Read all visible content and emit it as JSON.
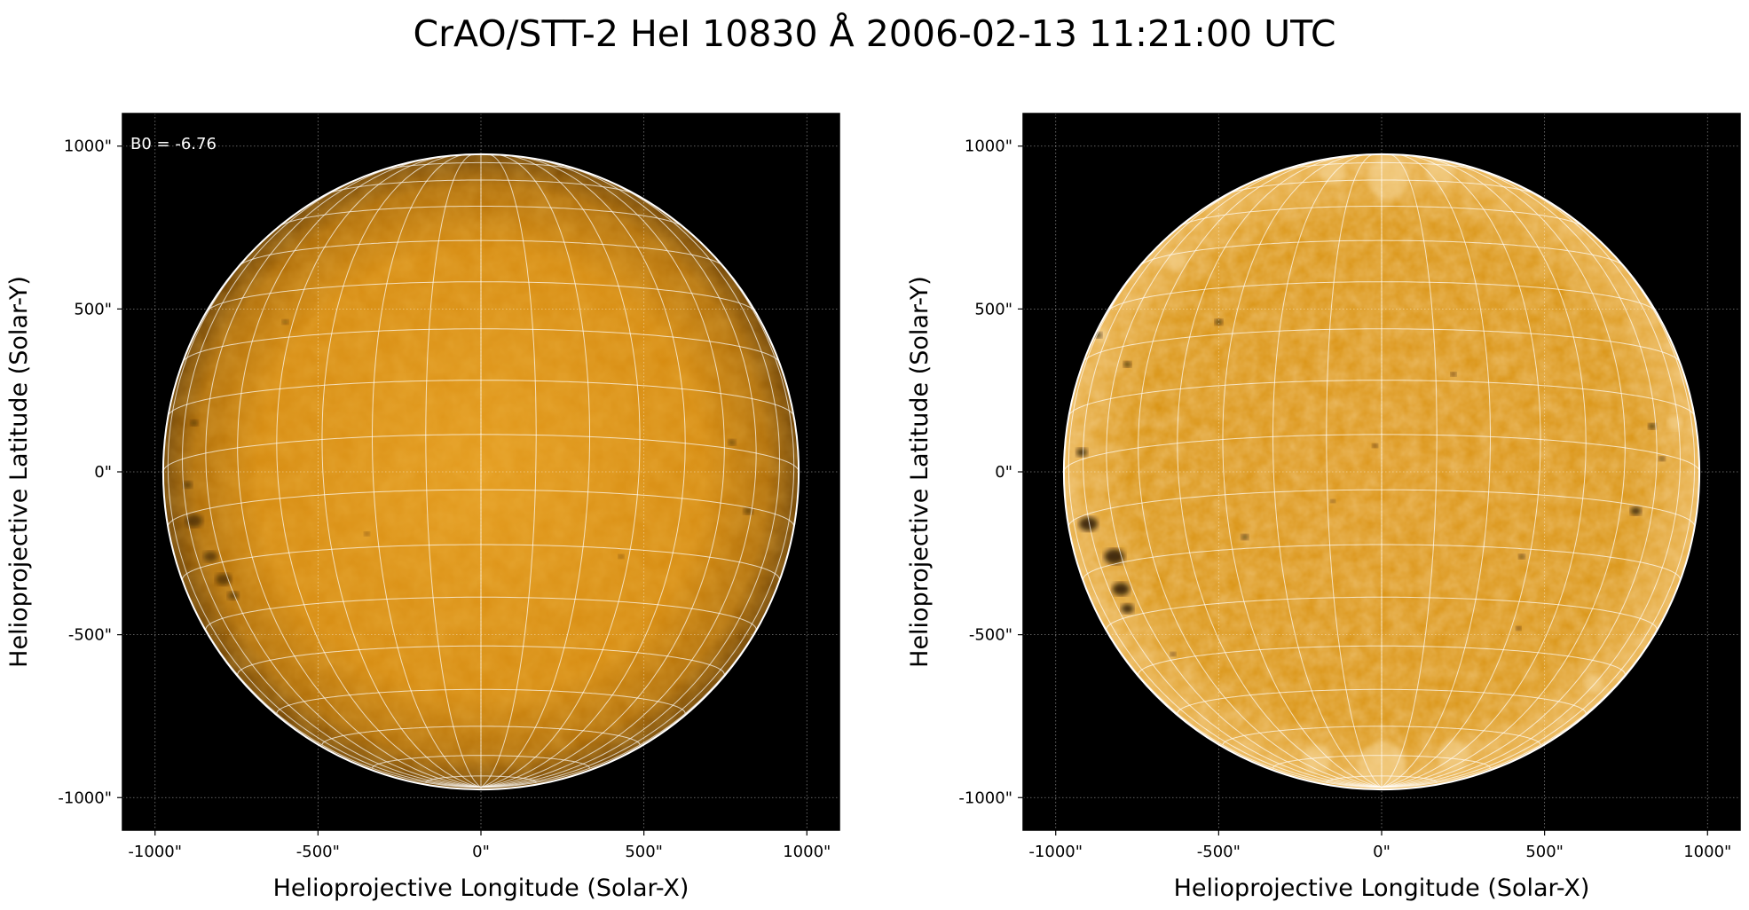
{
  "figure": {
    "title": "CrAO/STT-2 HeI 10830 Å 2006-02-13 11:21:00 UTC"
  },
  "colors": {
    "background": "#000000",
    "disk_left": "#d98a0c",
    "disk_right": "#d99312",
    "limb": "#ffffff",
    "grid": "#ffffff"
  },
  "chart_data": [
    {
      "type": "heatmap",
      "name": "left-panel",
      "xlabel": "Helioprojective Longitude (Solar-X)",
      "ylabel": "Helioprojective Latitude (Solar-Y)",
      "xlim": [
        -1100,
        1100
      ],
      "ylim": [
        -1100,
        1100
      ],
      "x_ticks": [
        -1000,
        -500,
        0,
        500,
        1000
      ],
      "y_ticks": [
        1000,
        500,
        0,
        -500,
        -1000
      ],
      "x_tick_labels": [
        "-1000\"",
        "-500\"",
        "0\"",
        "500\"",
        "1000\""
      ],
      "y_tick_labels": [
        "1000\"",
        "500\"",
        "0\"",
        "-500\"",
        "-1000\""
      ],
      "grid": true,
      "annotation": "B0 = -6.76",
      "solar_radius_arcsec": 975,
      "b0_deg": -6.76,
      "meridian_spacing_deg": 10,
      "parallel_spacing_deg": 10
    },
    {
      "type": "heatmap",
      "name": "right-panel",
      "xlabel": "Helioprojective Longitude (Solar-X)",
      "ylabel": "Helioprojective Latitude (Solar-Y)",
      "xlim": [
        -1100,
        1100
      ],
      "ylim": [
        -1100,
        1100
      ],
      "x_ticks": [
        -1000,
        -500,
        0,
        500,
        1000
      ],
      "y_ticks": [
        1000,
        500,
        0,
        -500,
        -1000
      ],
      "x_tick_labels": [
        "-1000\"",
        "-500\"",
        "0\"",
        "500\"",
        "1000\""
      ],
      "y_tick_labels": [
        "1000\"",
        "500\"",
        "0\"",
        "-500\"",
        "-1000\""
      ],
      "grid": true,
      "solar_radius_arcsec": 975,
      "b0_deg": -6.76,
      "meridian_spacing_deg": 10,
      "parallel_spacing_deg": 10
    }
  ]
}
